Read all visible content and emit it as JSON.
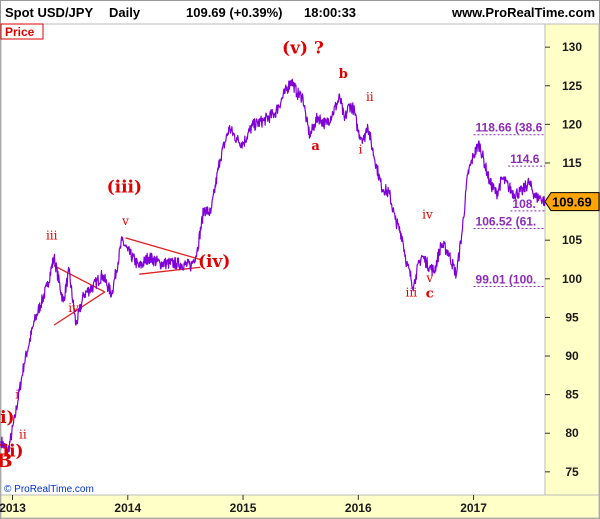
{
  "header": {
    "symbol": "Spot USD/JPY",
    "period": "Daily",
    "quote": "109.69 (+0.39%)",
    "time": "18:00:33",
    "site": "www.ProRealTime.com"
  },
  "panel_label": "Price",
  "copyright": "© ProRealTime.com",
  "current_price_label": "109.69",
  "colors": {
    "price": "#7f00d8",
    "wave_labels": "#e00000",
    "trendlines": "#e02020",
    "levels": "#8e2bb8",
    "axis_bg": "#ffffc8",
    "price_tag": "#ffa500"
  },
  "chart_data": {
    "type": "line",
    "title": "",
    "xlabel": "",
    "ylabel": "",
    "x_ticks": [
      "2013",
      "2014",
      "2015",
      "2016",
      "2017"
    ],
    "x_tick_values": [
      2013.0,
      2014.0,
      2015.0,
      2016.0,
      2017.0
    ],
    "x_range": [
      2012.9,
      2017.62
    ],
    "y_ticks": [
      75,
      80,
      85,
      90,
      95,
      100,
      105,
      110,
      115,
      120,
      125,
      130
    ],
    "ylim": [
      72,
      133
    ],
    "grid": false,
    "series": [
      {
        "values_x": [
          2012.9,
          2012.96,
          2013.02,
          2013.1,
          2013.19,
          2013.3,
          2013.36,
          2013.44,
          2013.49,
          2013.55,
          2013.62,
          2013.7,
          2013.78,
          2013.86,
          2013.95,
          2014.0,
          2014.1,
          2014.18,
          2014.28,
          2014.42,
          2014.55,
          2014.6,
          2014.66,
          2014.72,
          2014.8,
          2014.88,
          2014.95,
          2015.0,
          2015.08,
          2015.18,
          2015.28,
          2015.36,
          2015.42,
          2015.47,
          2015.52,
          2015.55,
          2015.58,
          2015.62,
          2015.65,
          2015.68,
          2015.72,
          2015.78,
          2015.84,
          2015.88,
          2015.92,
          2015.96,
          2016.0,
          2016.05,
          2016.08,
          2016.12,
          2016.2,
          2016.27,
          2016.32,
          2016.38,
          2016.42,
          2016.48,
          2016.5,
          2016.55,
          2016.62,
          2016.66,
          2016.72,
          2016.78,
          2016.85,
          2016.9,
          2016.95,
          2017.0,
          2017.05,
          2017.1,
          2017.14,
          2017.2,
          2017.25,
          2017.3,
          2017.35,
          2017.42,
          2017.48,
          2017.54,
          2017.58,
          2017.62
        ],
        "values_y": [
          79,
          77.5,
          82,
          89,
          94.5,
          99,
          102.8,
          97,
          101,
          94,
          98,
          99,
          100.5,
          98,
          105,
          103.6,
          101.5,
          102.8,
          102,
          102,
          101.7,
          103.5,
          109,
          108.5,
          115.5,
          119.5,
          118,
          117.5,
          119.8,
          120.5,
          121.5,
          124,
          125.7,
          124,
          123.5,
          120.5,
          118.5,
          120,
          121,
          120.5,
          120,
          121.5,
          123.5,
          120.5,
          122.5,
          122,
          119,
          118,
          120,
          117,
          112,
          111,
          107.7,
          105.5,
          102,
          99,
          100.5,
          103,
          101.5,
          101,
          104.5,
          103.5,
          100.5,
          106,
          113.5,
          116,
          117.5,
          114.7,
          112.5,
          111,
          113,
          112,
          111,
          111.3,
          112.5,
          110.5,
          110.5,
          110
        ]
      }
    ],
    "annotations": [
      "(i)",
      "(ii)",
      "B",
      "i",
      "ii",
      "iii",
      "iv",
      "v",
      "(iii)",
      "(iv)",
      "(v) ?",
      "a",
      "b",
      "i",
      "ii",
      "iii",
      "iv",
      "v",
      "c"
    ],
    "wave_points": [
      {
        "text": "(i)",
        "x": 2012.92,
        "y": 81.3
      },
      {
        "text": "(ii)",
        "x": 2012.97,
        "y": 77.0
      },
      {
        "text": "B",
        "x": 2012.93,
        "y": 75.6
      },
      {
        "text": "i",
        "x": 2013.04,
        "y": 84.5
      },
      {
        "text": "ii",
        "x": 2013.09,
        "y": 79.3
      },
      {
        "text": "iii",
        "x": 2013.34,
        "y": 105.1
      },
      {
        "text": "iv",
        "x": 2013.53,
        "y": 95.7
      },
      {
        "text": "v",
        "x": 2013.98,
        "y": 107.0
      },
      {
        "text": "(iii)",
        "x": 2013.97,
        "y": 111.2
      },
      {
        "text": "(iv)",
        "x": 2014.75,
        "y": 101.5
      },
      {
        "text": "(v) ?",
        "x": 2015.52,
        "y": 129.2
      },
      {
        "text": "a",
        "x": 2015.63,
        "y": 116.7
      },
      {
        "text": "b",
        "x": 2015.87,
        "y": 126.0
      },
      {
        "text": "i",
        "x": 2016.02,
        "y": 116.2
      },
      {
        "text": "ii",
        "x": 2016.1,
        "y": 123.0
      },
      {
        "text": "iii",
        "x": 2016.46,
        "y": 97.7
      },
      {
        "text": "iv",
        "x": 2016.6,
        "y": 107.8
      },
      {
        "text": "v",
        "x": 2016.62,
        "y": 99.6
      },
      {
        "text": "c",
        "x": 2016.62,
        "y": 97.6
      }
    ],
    "trendlines": [
      {
        "x1": 2013.36,
        "y1": 101.7,
        "x2": 2013.8,
        "y2": 98.3
      },
      {
        "x1": 2013.36,
        "y1": 94.0,
        "x2": 2013.8,
        "y2": 98.3
      },
      {
        "x1": 2013.98,
        "y1": 105.3,
        "x2": 2014.63,
        "y2": 102.5
      },
      {
        "x1": 2014.1,
        "y1": 100.6,
        "x2": 2014.63,
        "y2": 101.5
      }
    ],
    "levels": [
      {
        "label": "118.66 (38.6",
        "value": 118.66,
        "x_start": 2017.0
      },
      {
        "label": "114.6",
        "value": 114.6,
        "x_start": 2017.3
      },
      {
        "label": "108.",
        "value": 108.8,
        "x_start": 2017.32
      },
      {
        "label": "106.52 (61.",
        "value": 106.52,
        "x_start": 2017.0
      },
      {
        "label": "99.01 (100.",
        "value": 99.01,
        "x_start": 2017.0
      }
    ]
  }
}
